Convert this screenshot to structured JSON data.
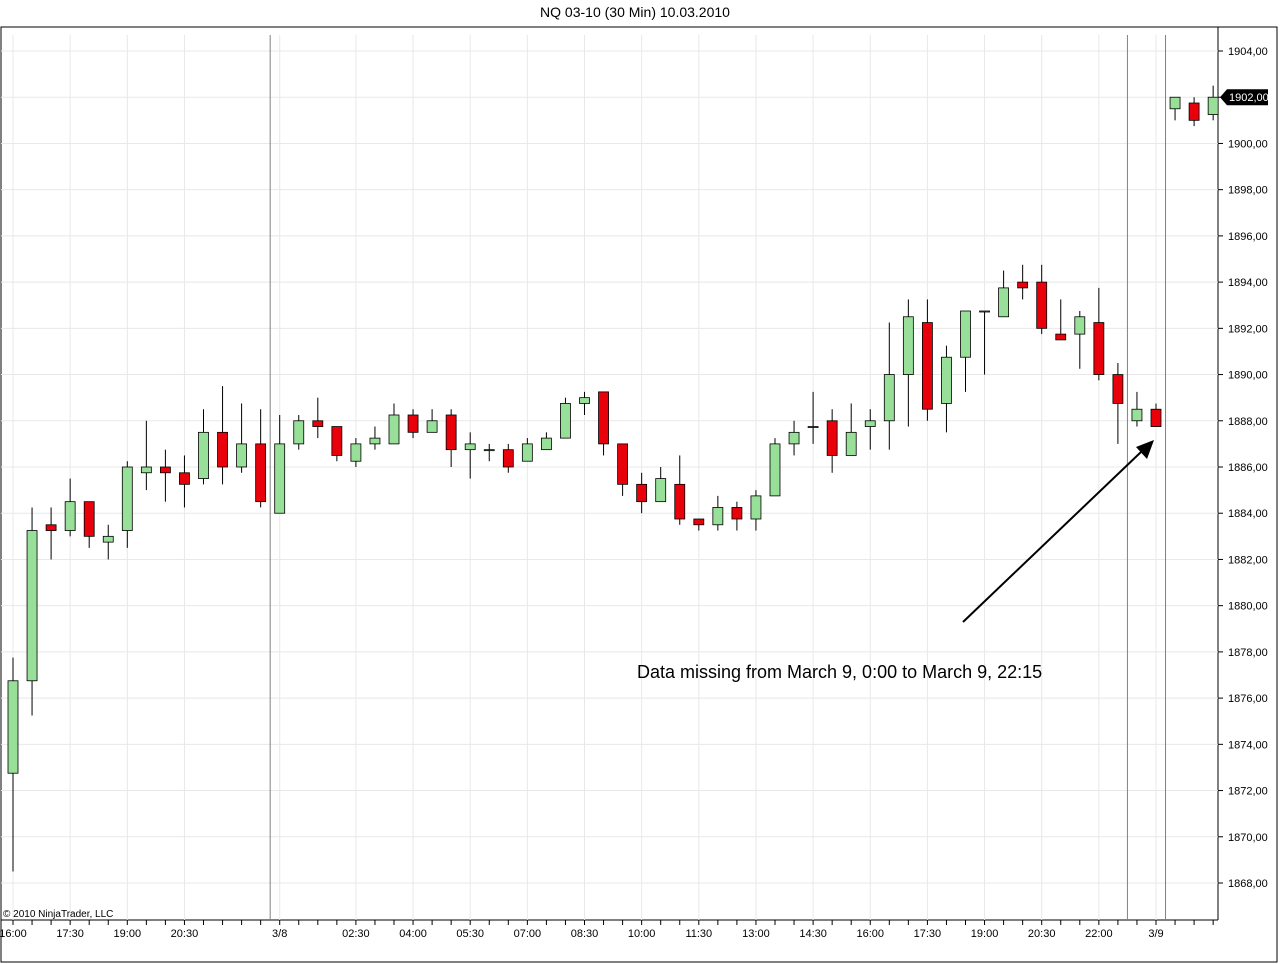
{
  "chart_data": {
    "type": "candlestick",
    "title": "NQ 03-10 (30 Min)  10.03.2010",
    "copyright": "© 2010 NinjaTrader, LLC",
    "ylim": [
      1866,
      1905
    ],
    "grid": true,
    "y_ticks": [
      1868,
      1870,
      1872,
      1874,
      1876,
      1878,
      1880,
      1882,
      1884,
      1886,
      1888,
      1890,
      1892,
      1894,
      1896,
      1898,
      1900,
      1902,
      1904
    ],
    "y_tick_labels": [
      "1868,00",
      "1870,00",
      "1872,00",
      "1874,00",
      "1876,00",
      "1878,00",
      "1880,00",
      "1882,00",
      "1884,00",
      "1886,00",
      "1888,00",
      "1890,00",
      "1892,00",
      "1894,00",
      "1896,00",
      "1898,00",
      "1900,00",
      "1902,00",
      "1904,00"
    ],
    "x_labels": [
      {
        "bar": 0,
        "label": "16:00"
      },
      {
        "bar": 3,
        "label": "17:30"
      },
      {
        "bar": 6,
        "label": "19:00"
      },
      {
        "bar": 9,
        "label": "20:30"
      },
      {
        "bar": 14,
        "label": "3/8"
      },
      {
        "bar": 18,
        "label": "02:30"
      },
      {
        "bar": 21,
        "label": "04:00"
      },
      {
        "bar": 24,
        "label": "05:30"
      },
      {
        "bar": 27,
        "label": "07:00"
      },
      {
        "bar": 30,
        "label": "08:30"
      },
      {
        "bar": 33,
        "label": "10:00"
      },
      {
        "bar": 36,
        "label": "11:30"
      },
      {
        "bar": 39,
        "label": "13:00"
      },
      {
        "bar": 42,
        "label": "14:30"
      },
      {
        "bar": 45,
        "label": "16:00"
      },
      {
        "bar": 48,
        "label": "17:30"
      },
      {
        "bar": 51,
        "label": "19:00"
      },
      {
        "bar": 54,
        "label": "20:30"
      },
      {
        "bar": 57,
        "label": "22:00"
      },
      {
        "bar": 60,
        "label": "3/9"
      }
    ],
    "session_breaks": [
      13.5,
      58.5,
      60.5
    ],
    "candles": [
      {
        "o": 1872.75,
        "h": 1877.75,
        "l": 1868.5,
        "c": 1876.75
      },
      {
        "o": 1876.75,
        "h": 1884.25,
        "l": 1875.25,
        "c": 1883.25
      },
      {
        "o": 1883.5,
        "h": 1884.25,
        "l": 1882.0,
        "c": 1883.25
      },
      {
        "o": 1883.25,
        "h": 1885.5,
        "l": 1883.0,
        "c": 1884.5
      },
      {
        "o": 1884.5,
        "h": 1884.5,
        "l": 1882.5,
        "c": 1883.0
      },
      {
        "o": 1882.75,
        "h": 1883.5,
        "l": 1882.0,
        "c": 1883.0
      },
      {
        "o": 1883.25,
        "h": 1886.25,
        "l": 1882.5,
        "c": 1886.0
      },
      {
        "o": 1885.75,
        "h": 1888.0,
        "l": 1885.0,
        "c": 1886.0
      },
      {
        "o": 1886.0,
        "h": 1886.75,
        "l": 1884.5,
        "c": 1885.75
      },
      {
        "o": 1885.75,
        "h": 1886.5,
        "l": 1884.25,
        "c": 1885.25
      },
      {
        "o": 1885.5,
        "h": 1888.5,
        "l": 1885.25,
        "c": 1887.5
      },
      {
        "o": 1887.5,
        "h": 1889.5,
        "l": 1885.25,
        "c": 1886.0
      },
      {
        "o": 1886.0,
        "h": 1888.75,
        "l": 1885.75,
        "c": 1887.0
      },
      {
        "o": 1887.0,
        "h": 1888.5,
        "l": 1884.25,
        "c": 1884.5
      },
      {
        "o": 1884.0,
        "h": 1888.25,
        "l": 1884.0,
        "c": 1887.0
      },
      {
        "o": 1887.0,
        "h": 1888.25,
        "l": 1886.75,
        "c": 1888.0
      },
      {
        "o": 1888.0,
        "h": 1889.0,
        "l": 1887.25,
        "c": 1887.75
      },
      {
        "o": 1887.75,
        "h": 1887.75,
        "l": 1886.25,
        "c": 1886.5
      },
      {
        "o": 1886.25,
        "h": 1887.25,
        "l": 1886.0,
        "c": 1887.0
      },
      {
        "o": 1887.0,
        "h": 1887.75,
        "l": 1886.75,
        "c": 1887.25
      },
      {
        "o": 1887.0,
        "h": 1888.75,
        "l": 1887.0,
        "c": 1888.25
      },
      {
        "o": 1888.25,
        "h": 1888.5,
        "l": 1887.25,
        "c": 1887.5
      },
      {
        "o": 1887.5,
        "h": 1888.5,
        "l": 1887.5,
        "c": 1888.0
      },
      {
        "o": 1888.25,
        "h": 1888.5,
        "l": 1886.0,
        "c": 1886.75
      },
      {
        "o": 1886.75,
        "h": 1887.5,
        "l": 1885.5,
        "c": 1887.0
      },
      {
        "o": 1886.75,
        "h": 1887.0,
        "l": 1886.25,
        "c": 1886.75
      },
      {
        "o": 1886.75,
        "h": 1887.0,
        "l": 1885.75,
        "c": 1886.0
      },
      {
        "o": 1886.25,
        "h": 1887.25,
        "l": 1886.25,
        "c": 1887.0
      },
      {
        "o": 1886.75,
        "h": 1887.5,
        "l": 1886.75,
        "c": 1887.25
      },
      {
        "o": 1887.25,
        "h": 1889.0,
        "l": 1887.25,
        "c": 1888.75
      },
      {
        "o": 1888.75,
        "h": 1889.25,
        "l": 1888.25,
        "c": 1889.0
      },
      {
        "o": 1889.25,
        "h": 1889.25,
        "l": 1886.5,
        "c": 1887.0
      },
      {
        "o": 1887.0,
        "h": 1887.0,
        "l": 1884.75,
        "c": 1885.25
      },
      {
        "o": 1885.25,
        "h": 1885.75,
        "l": 1884.0,
        "c": 1884.5
      },
      {
        "o": 1884.5,
        "h": 1886.0,
        "l": 1884.5,
        "c": 1885.5
      },
      {
        "o": 1885.25,
        "h": 1886.5,
        "l": 1883.5,
        "c": 1883.75
      },
      {
        "o": 1883.75,
        "h": 1883.75,
        "l": 1883.25,
        "c": 1883.5
      },
      {
        "o": 1883.5,
        "h": 1884.75,
        "l": 1883.25,
        "c": 1884.25
      },
      {
        "o": 1884.25,
        "h": 1884.5,
        "l": 1883.25,
        "c": 1883.75
      },
      {
        "o": 1883.75,
        "h": 1885.0,
        "l": 1883.25,
        "c": 1884.75
      },
      {
        "o": 1884.75,
        "h": 1887.25,
        "l": 1884.75,
        "c": 1887.0
      },
      {
        "o": 1887.0,
        "h": 1888.0,
        "l": 1886.5,
        "c": 1887.5
      },
      {
        "o": 1887.75,
        "h": 1889.25,
        "l": 1887.0,
        "c": 1887.75
      },
      {
        "o": 1888.0,
        "h": 1888.5,
        "l": 1885.75,
        "c": 1886.5
      },
      {
        "o": 1886.5,
        "h": 1888.75,
        "l": 1886.5,
        "c": 1887.5
      },
      {
        "o": 1887.75,
        "h": 1888.5,
        "l": 1886.75,
        "c": 1888.0
      },
      {
        "o": 1888.0,
        "h": 1892.25,
        "l": 1886.75,
        "c": 1890.0
      },
      {
        "o": 1890.0,
        "h": 1893.25,
        "l": 1887.75,
        "c": 1892.5
      },
      {
        "o": 1892.25,
        "h": 1893.25,
        "l": 1888.0,
        "c": 1888.5
      },
      {
        "o": 1888.75,
        "h": 1891.25,
        "l": 1887.5,
        "c": 1890.75
      },
      {
        "o": 1890.75,
        "h": 1892.75,
        "l": 1889.25,
        "c": 1892.75
      },
      {
        "o": 1892.75,
        "h": 1892.75,
        "l": 1890.0,
        "c": 1892.75
      },
      {
        "o": 1892.5,
        "h": 1894.5,
        "l": 1892.5,
        "c": 1893.75
      },
      {
        "o": 1894.0,
        "h": 1894.75,
        "l": 1893.25,
        "c": 1893.75
      },
      {
        "o": 1894.0,
        "h": 1894.75,
        "l": 1891.75,
        "c": 1892.0
      },
      {
        "o": 1891.75,
        "h": 1893.25,
        "l": 1891.5,
        "c": 1891.5
      },
      {
        "o": 1891.75,
        "h": 1892.75,
        "l": 1890.25,
        "c": 1892.5
      },
      {
        "o": 1892.25,
        "h": 1893.75,
        "l": 1889.75,
        "c": 1890.0
      },
      {
        "o": 1890.0,
        "h": 1890.5,
        "l": 1887.0,
        "c": 1888.75
      },
      {
        "o": 1888.0,
        "h": 1889.25,
        "l": 1887.75,
        "c": 1888.5
      },
      {
        "o": 1888.5,
        "h": 1888.75,
        "l": 1887.75,
        "c": 1887.75
      },
      {
        "o": 1901.5,
        "h": 1902.0,
        "l": 1901.0,
        "c": 1902.0
      },
      {
        "o": 1901.75,
        "h": 1902.0,
        "l": 1900.75,
        "c": 1901.0
      },
      {
        "o": 1901.25,
        "h": 1902.5,
        "l": 1901.0,
        "c": 1902.0
      }
    ],
    "last_price_label": "1902,00",
    "annotation": "Data missing from March 9, 0:00 to March 9, 22:15",
    "colors": {
      "up": "#98e09a",
      "down": "#e8000b",
      "outline": "#000000",
      "grid": "#e8e8e8",
      "session_line": "#808080"
    }
  }
}
